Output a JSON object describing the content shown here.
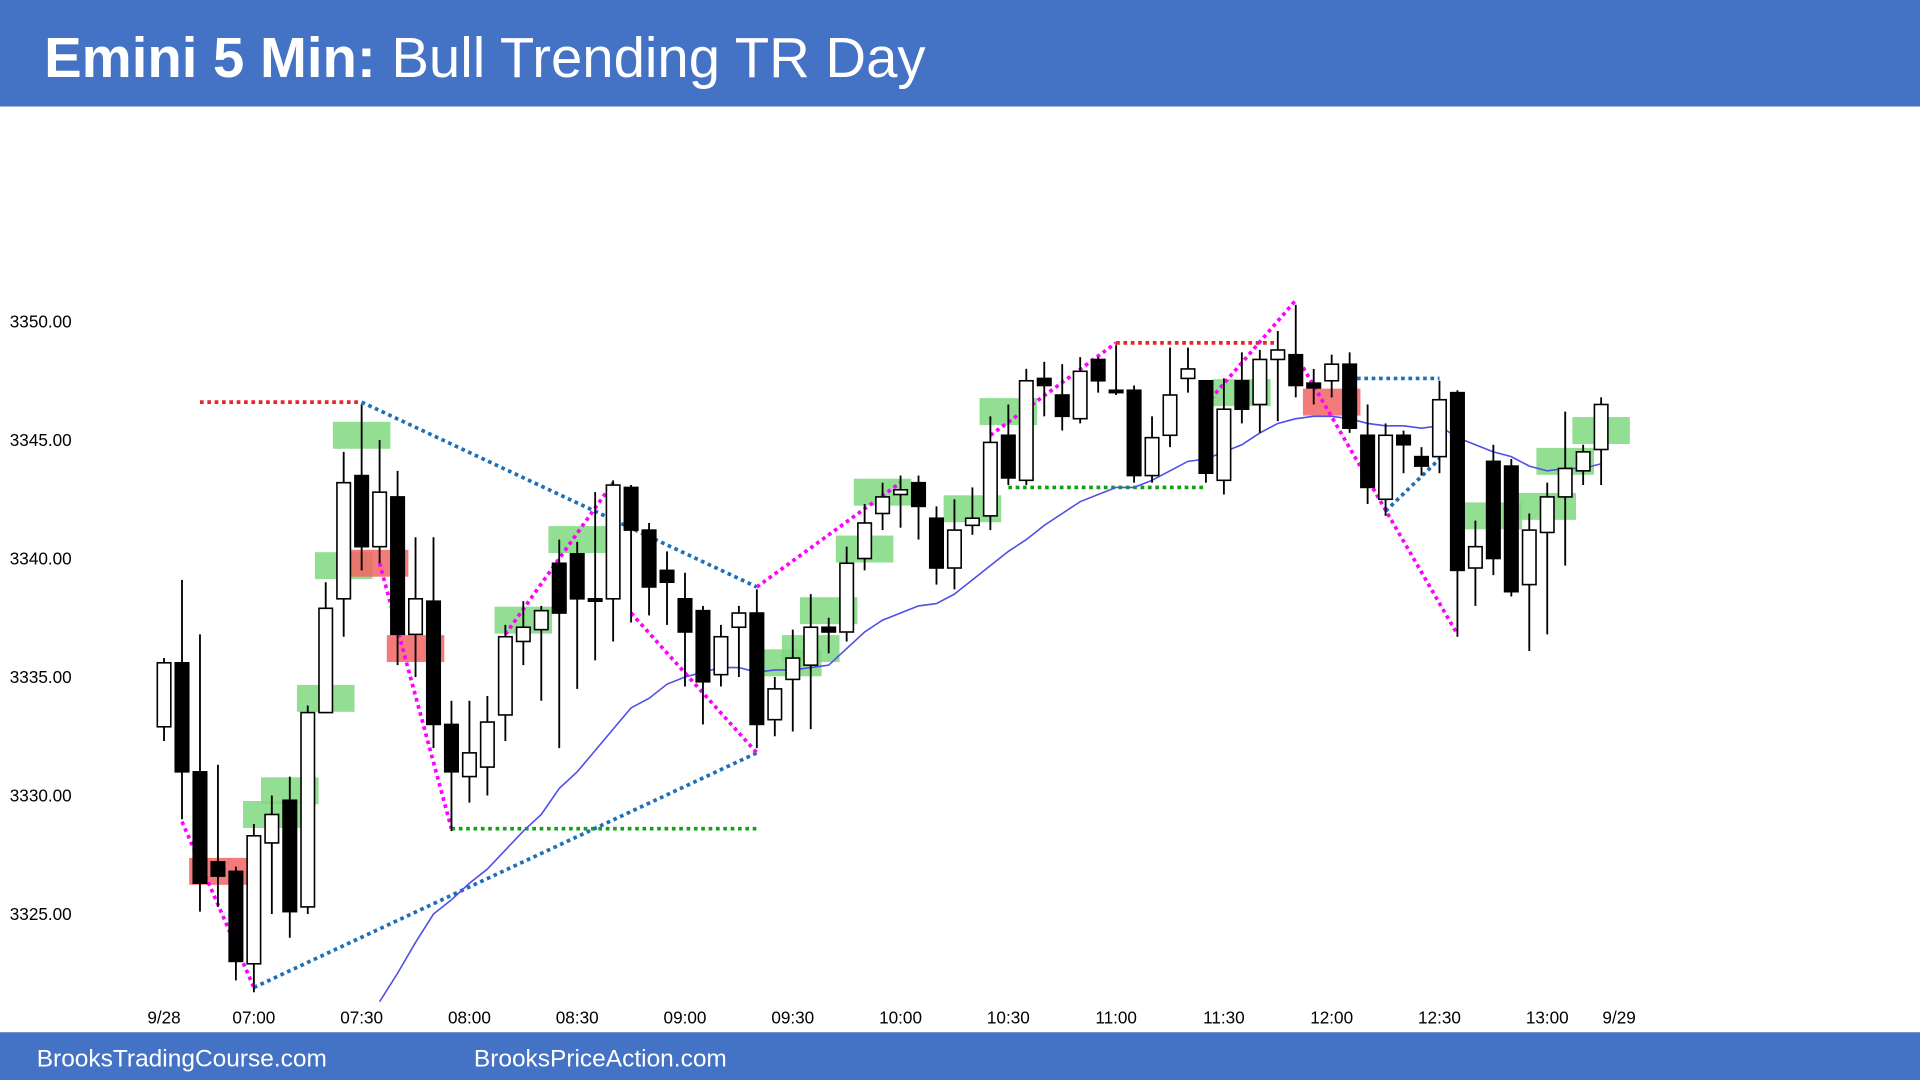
{
  "chart_data": {
    "type": "candlestick",
    "title": "Emini 5 Min:",
    "subtitle": "Bull Trending TR Day",
    "up_color": "#ffffff",
    "down_color": "#000000",
    "open": [
      3332.9,
      3335.6,
      3331,
      3327.2,
      3326.8,
      3322.9,
      3328,
      3329.8,
      3325.3,
      3333.5,
      3338.3,
      3343.5,
      3340.5,
      3342.6,
      3336.8,
      3338.2,
      3333,
      3330.8,
      3331.2,
      3333.4,
      3336.5,
      3337,
      3339.8,
      3340.2,
      3338.3,
      3338.3,
      3343,
      3341.2,
      3339.5,
      3338.3,
      3337.8,
      3335.1,
      3337.1,
      3337.7,
      3333.2,
      3334.9,
      3335.5,
      3337.1,
      3336.9,
      3340,
      3341.9,
      3342.7,
      3343.2,
      3341.7,
      3339.6,
      3341.4,
      3341.8,
      3345.2,
      3343.3,
      3347.6,
      3346.9,
      3345.9,
      3348.4,
      3347.1,
      3347.1,
      3343.5,
      3345.2,
      3347.6,
      3347.5,
      3343.3,
      3347.5,
      3346.5,
      3348.4,
      3348.6,
      3347.4,
      3347.5,
      3348.2,
      3345.2,
      3342.5,
      3345.2,
      3344.3,
      3344.3,
      3347,
      3339.6,
      3344.1,
      3343.9,
      3338.9,
      3341.1,
      3342.6,
      3343.7,
      3344.6
    ],
    "high": [
      3335.8,
      3339.1,
      3336.8,
      3331.3,
      3327,
      3328.8,
      3330,
      3330.8,
      3333.8,
      3339,
      3344.5,
      3346.5,
      3345,
      3343.7,
      3340.9,
      3340.9,
      3334,
      3334,
      3334.2,
      3337.2,
      3338.2,
      3338,
      3340.8,
      3340.7,
      3342.8,
      3343.3,
      3343.1,
      3341.5,
      3340.3,
      3339.4,
      3338,
      3337.2,
      3338,
      3338.7,
      3335,
      3337,
      3338.5,
      3337.5,
      3340.5,
      3342.3,
      3343.2,
      3343.5,
      3343.5,
      3342.2,
      3342.5,
      3343,
      3346,
      3346.5,
      3348,
      3348.3,
      3348.2,
      3348.5,
      3348.5,
      3349,
      3347.3,
      3346,
      3348.9,
      3348.9,
      3347.5,
      3347.6,
      3348.7,
      3348.8,
      3349.6,
      3350.7,
      3348,
      3348.6,
      3348.7,
      3346.5,
      3345.7,
      3345.4,
      3344.7,
      3347.5,
      3347.1,
      3341.6,
      3344.8,
      3344.2,
      3341.9,
      3343.2,
      3346.2,
      3344.8,
      3346.8
    ],
    "low": [
      3332.3,
      3329,
      3325.1,
      3325.3,
      3322.2,
      3321.7,
      3325,
      3324,
      3325,
      3333.5,
      3336.7,
      3339.5,
      3339.8,
      3335.5,
      3335,
      3332,
      3328.5,
      3329.7,
      3330,
      3332.3,
      3335.5,
      3334,
      3332,
      3334.5,
      3335.7,
      3336.5,
      3337.3,
      3337.6,
      3337.2,
      3334.6,
      3333,
      3334.6,
      3335,
      3332,
      3332.5,
      3332.7,
      3332.8,
      3336,
      3336.5,
      3339.5,
      3341.2,
      3341.3,
      3340.8,
      3338.9,
      3338.7,
      3341,
      3341.2,
      3343.1,
      3343.1,
      3346,
      3345.4,
      3345.7,
      3347,
      3346.9,
      3343.2,
      3343.2,
      3344.7,
      3347,
      3343.2,
      3342.7,
      3345.7,
      3345.3,
      3345.8,
      3346.8,
      3346.5,
      3346.8,
      3345.3,
      3342.3,
      3341.8,
      3343.6,
      3343.5,
      3343.6,
      3336.7,
      3338,
      3339.3,
      3338.4,
      3336.1,
      3336.8,
      3339.7,
      3343.1,
      3343.1
    ],
    "close": [
      3335.6,
      3331,
      3326.3,
      3326.6,
      3323,
      3328.3,
      3329.2,
      3325.1,
      3333.5,
      3337.9,
      3343.2,
      3340.5,
      3342.8,
      3336.8,
      3338.3,
      3333,
      3331,
      3331.8,
      3333.1,
      3336.7,
      3337.1,
      3337.8,
      3337.7,
      3338.3,
      3338.2,
      3343.1,
      3341.2,
      3338.8,
      3339,
      3336.9,
      3334.8,
      3336.7,
      3337.7,
      3333,
      3334.5,
      3335.8,
      3337.1,
      3336.9,
      3339.8,
      3341.5,
      3342.6,
      3342.9,
      3342.2,
      3339.6,
      3341.2,
      3341.7,
      3344.9,
      3343.4,
      3347.5,
      3347.3,
      3346,
      3347.9,
      3347.5,
      3347,
      3343.5,
      3345.1,
      3346.9,
      3348,
      3343.6,
      3346.3,
      3346.3,
      3348.4,
      3348.8,
      3347.3,
      3347.2,
      3348.2,
      3345.5,
      3343,
      3345.2,
      3344.8,
      3343.9,
      3346.7,
      3339.5,
      3340.5,
      3340,
      3338.6,
      3341.2,
      3342.6,
      3343.8,
      3344.5,
      3346.5
    ],
    "ema": {
      "color": "#4f4fe8",
      "values": [
        null,
        null,
        null,
        null,
        null,
        null,
        null,
        null,
        null,
        null,
        null,
        null,
        3321.3,
        3322.5,
        3323.8,
        3325,
        3325.6,
        3326.3,
        3326.9,
        3327.7,
        3328.5,
        3329.2,
        3330.3,
        3331,
        3331.9,
        3332.8,
        3333.7,
        3334.1,
        3334.7,
        3335,
        3335.2,
        3335.4,
        3335.4,
        3335.2,
        3335.3,
        3335.3,
        3335.4,
        3335.5,
        3336.2,
        3336.9,
        3337.4,
        3337.7,
        3338,
        3338.1,
        3338.5,
        3339.1,
        3339.7,
        3340.3,
        3340.8,
        3341.4,
        3341.9,
        3342.4,
        3342.7,
        3343,
        3343,
        3343.3,
        3343.7,
        3344.1,
        3344.2,
        3344.5,
        3344.8,
        3345.3,
        3345.7,
        3345.9,
        3346,
        3346,
        3345.9,
        3345.7,
        3345.6,
        3345.6,
        3345.5,
        3345.6,
        3345.1,
        3344.8,
        3344.5,
        3344.3,
        3343.9,
        3343.7,
        3343.8,
        3343.8,
        3344
      ]
    },
    "xlim": [
      -1,
      81.5
    ],
    "xticks": [
      {
        "value": 0,
        "label": "9/28"
      },
      {
        "value": 5,
        "label": "07:00"
      },
      {
        "value": 11,
        "label": "07:30"
      },
      {
        "value": 17,
        "label": "08:00"
      },
      {
        "value": 23,
        "label": "08:30"
      },
      {
        "value": 29,
        "label": "09:00"
      },
      {
        "value": 35,
        "label": "09:30"
      },
      {
        "value": 41,
        "label": "10:00"
      },
      {
        "value": 47,
        "label": "10:30"
      },
      {
        "value": 53,
        "label": "11:00"
      },
      {
        "value": 59,
        "label": "11:30"
      },
      {
        "value": 65,
        "label": "12:00"
      },
      {
        "value": 71,
        "label": "12:30"
      },
      {
        "value": 77,
        "label": "13:00"
      },
      {
        "value": 81,
        "label": "9/29"
      }
    ],
    "ylim": [
      3321.2,
      3358.4
    ],
    "yticks": [
      {
        "value": 3325,
        "label": "3325.00"
      },
      {
        "value": 3330,
        "label": "3330.00"
      },
      {
        "value": 3335,
        "label": "3335.00"
      },
      {
        "value": 3340,
        "label": "3340.00"
      },
      {
        "value": 3345,
        "label": "3345.00"
      },
      {
        "value": 3350,
        "label": "3350.00"
      }
    ],
    "lines": [
      {
        "x1": 2,
        "y1": 3346.6,
        "x2": 11,
        "y2": 3346.6,
        "color": "#e8262a"
      },
      {
        "x1": 11,
        "y1": 3346.6,
        "x2": 33,
        "y2": 3338.8,
        "color": "#1c6fb8"
      },
      {
        "x1": 12,
        "y1": 3339.8,
        "x2": 16,
        "y2": 3328.6,
        "color": "#ff00ff"
      },
      {
        "x1": 16,
        "y1": 3328.6,
        "x2": 33,
        "y2": 3328.6,
        "color": "#14a014"
      },
      {
        "x1": 5,
        "y1": 3321.9,
        "x2": 33,
        "y2": 3331.8,
        "color": "#1c6fb8"
      },
      {
        "x1": 1,
        "y1": 3328.9,
        "x2": 5,
        "y2": 3321.9,
        "color": "#ff00ff"
      },
      {
        "x1": 19,
        "y1": 3336.8,
        "x2": 25,
        "y2": 3343.2,
        "color": "#ff00ff"
      },
      {
        "x1": 26,
        "y1": 3337.7,
        "x2": 33,
        "y2": 3331.8,
        "color": "#ff00ff"
      },
      {
        "x1": 33,
        "y1": 3338.8,
        "x2": 41,
        "y2": 3343.2,
        "color": "#ff00ff"
      },
      {
        "x1": 46,
        "y1": 3345.2,
        "x2": 53,
        "y2": 3349.1,
        "color": "#ff00ff"
      },
      {
        "x1": 53,
        "y1": 3349.1,
        "x2": 62,
        "y2": 3349.1,
        "color": "#e8262a"
      },
      {
        "x1": 47,
        "y1": 3343,
        "x2": 58,
        "y2": 3343,
        "color": "#14a014"
      },
      {
        "x1": 58,
        "y1": 3346.5,
        "x2": 63,
        "y2": 3350.9,
        "color": "#ff00ff"
      },
      {
        "x1": 63,
        "y1": 3348.6,
        "x2": 72,
        "y2": 3336.8,
        "color": "#ff00ff"
      },
      {
        "x1": 66,
        "y1": 3347.6,
        "x2": 71,
        "y2": 3347.6,
        "color": "#1c6fb8"
      },
      {
        "x1": 68,
        "y1": 3342,
        "x2": 71,
        "y2": 3344.2,
        "color": "#1c6fb8"
      }
    ],
    "boxes": [
      {
        "x": 11,
        "y": 3345.2,
        "color": "#7fd87f"
      },
      {
        "x": 10,
        "y": 3339.7,
        "color": "#7fd87f"
      },
      {
        "x": 9,
        "y": 3334.1,
        "color": "#7fd87f"
      },
      {
        "x": 7,
        "y": 3330.2,
        "color": "#7fd87f"
      },
      {
        "x": 6,
        "y": 3329.2,
        "color": "#7fd87f"
      },
      {
        "x": 20,
        "y": 3337.4,
        "color": "#7fd87f"
      },
      {
        "x": 23,
        "y": 3340.8,
        "color": "#7fd87f"
      },
      {
        "x": 35,
        "y": 3335.6,
        "color": "#7fd87f"
      },
      {
        "x": 36,
        "y": 3336.2,
        "color": "#7fd87f"
      },
      {
        "x": 37,
        "y": 3337.8,
        "color": "#7fd87f"
      },
      {
        "x": 39,
        "y": 3340.4,
        "color": "#7fd87f"
      },
      {
        "x": 40,
        "y": 3342.8,
        "color": "#7fd87f"
      },
      {
        "x": 45,
        "y": 3342.1,
        "color": "#7fd87f"
      },
      {
        "x": 47,
        "y": 3346.2,
        "color": "#7fd87f"
      },
      {
        "x": 60,
        "y": 3347,
        "color": "#7fd87f"
      },
      {
        "x": 74,
        "y": 3341.8,
        "color": "#7fd87f"
      },
      {
        "x": 77,
        "y": 3342.2,
        "color": "#7fd87f"
      },
      {
        "x": 78,
        "y": 3344.1,
        "color": "#7fd87f"
      },
      {
        "x": 80,
        "y": 3345.4,
        "color": "#7fd87f"
      },
      {
        "x": 3,
        "y": 3326.8,
        "color": "#f26464"
      },
      {
        "x": 12,
        "y": 3339.8,
        "color": "#f26464"
      },
      {
        "x": 14,
        "y": 3336.2,
        "color": "#f26464"
      },
      {
        "x": 65,
        "y": 3346.6,
        "color": "#f26464"
      }
    ]
  },
  "footer": {
    "left": "BrooksTradingCourse.com",
    "right": "BrooksPriceAction.com"
  }
}
